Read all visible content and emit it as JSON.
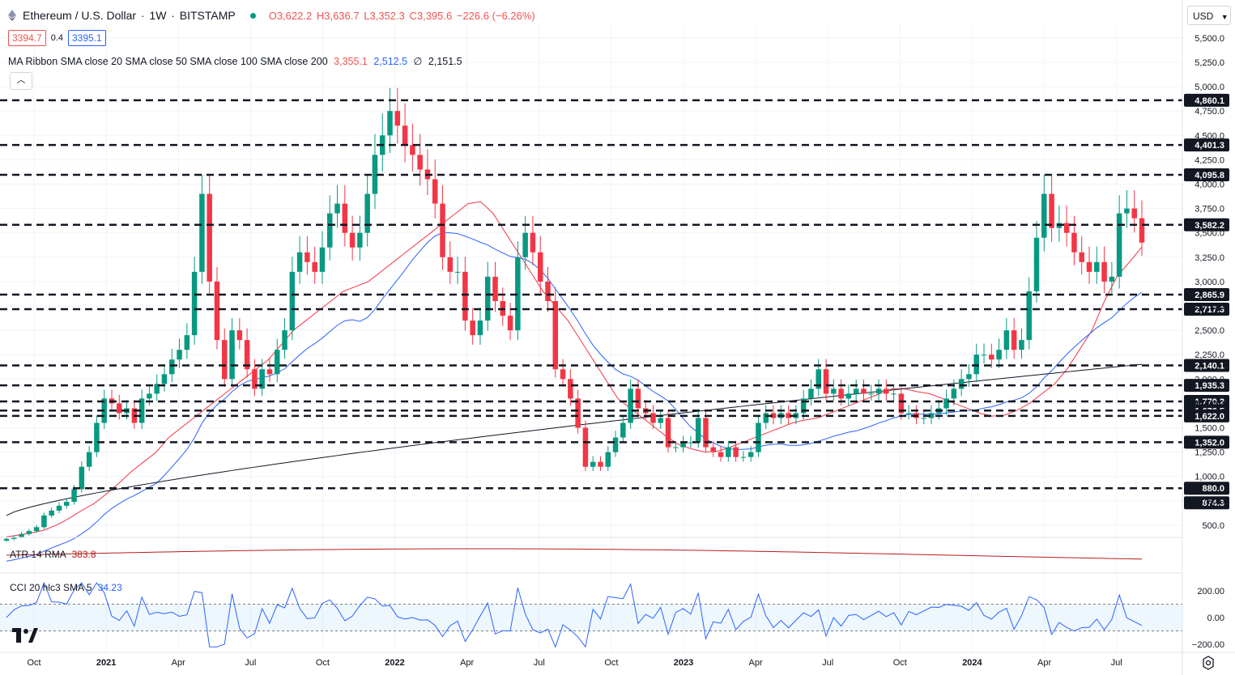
{
  "header": {
    "symbol_name": "Ethereum / U.S. Dollar",
    "interval": "1W",
    "exchange": "BITSTAMP",
    "open": "O3,622.2",
    "high": "H3,636.7",
    "low": "L3,352.3",
    "close": "C3,395.6",
    "change": "−226.6 (−6.26%)",
    "bid": "3394.7",
    "spread": "0.4",
    "ask": "3395.1",
    "indicator_title": "MA Ribbon SMA close 20 SMA close 50 SMA close 100 SMA close 200",
    "ma20_value": "3,355.1",
    "ma50_value": "2,512.5",
    "ma100_value": "∅",
    "ma200_value": "2,151.5",
    "currency_button": "USD"
  },
  "atr": {
    "label": "ATR 14 RMA",
    "value": "383.8"
  },
  "cci": {
    "label": "CCI 20 hlc3 SMA 5",
    "value": "34.23",
    "ticks": [
      "200.00",
      "0.00",
      "−200.00"
    ]
  },
  "colors": {
    "bull": "#089981",
    "bear": "#f23645",
    "ma20": "#f23645",
    "ma50": "#2962ff",
    "ma200": "#131722",
    "atr": "#b71c1c",
    "cci": "#2962ff",
    "level_line": "#131722"
  },
  "chart_data": {
    "type": "candlestick",
    "title": "Ethereum / U.S. Dollar · 1W · BITSTAMP",
    "x_labels": [
      "Oct",
      "2021",
      "Apr",
      "Jul",
      "Oct",
      "2022",
      "Apr",
      "Jul",
      "Oct",
      "2023",
      "Apr",
      "Jul",
      "Oct",
      "2024",
      "Apr",
      "Jul"
    ],
    "y_ticks": [
      "5,500.0",
      "5,250.0",
      "5,000.0",
      "4,750.0",
      "4,500.0",
      "4,250.0",
      "4,000.0",
      "3,750.0",
      "3,500.0",
      "3,250.0",
      "3,000.0",
      "2,750.0",
      "2,500.0",
      "2,250.0",
      "2,000.0",
      "1,750.0",
      "1,500.0",
      "1,250.0",
      "1,000.0",
      "750.0",
      "500.0"
    ],
    "y_tick_values": [
      5500,
      5250,
      5000,
      4750,
      4500,
      4250,
      4000,
      3750,
      3500,
      3250,
      3000,
      2750,
      2500,
      2250,
      2000,
      1750,
      1500,
      1250,
      1000,
      750,
      500
    ],
    "ylim": [
      375,
      5640
    ],
    "horizontal_levels": [
      {
        "label": "4,860.1",
        "value": 4860.1
      },
      {
        "label": "4,401.3",
        "value": 4401.3
      },
      {
        "label": "4,095.8",
        "value": 4095.8
      },
      {
        "label": "3,582.2",
        "value": 3582.2
      },
      {
        "label": "2,865.9",
        "value": 2865.9
      },
      {
        "label": "2,717.3",
        "value": 2717.3
      },
      {
        "label": "2,140.1",
        "value": 2140.1
      },
      {
        "label": "1,935.3",
        "value": 1935.3
      },
      {
        "label": "1,770.2",
        "value": 1770.2
      },
      {
        "label": "1,676.5",
        "value": 1676.5
      },
      {
        "label": "1,622.0",
        "value": 1622.0
      },
      {
        "label": "1,352.0",
        "value": 1352.0
      },
      {
        "label": "880.0",
        "value": 880.0
      },
      {
        "label": "874.3",
        "value": 874.3
      }
    ],
    "close_series": [
      360,
      380,
      410,
      440,
      480,
      600,
      650,
      700,
      740,
      870,
      1100,
      1250,
      1550,
      1800,
      1750,
      1650,
      1700,
      1550,
      1800,
      1850,
      1950,
      2050,
      2200,
      2300,
      2450,
      3100,
      3900,
      3000,
      2400,
      2000,
      2500,
      2400,
      2100,
      1900,
      2100,
      2050,
      2300,
      2500,
      3100,
      3300,
      3200,
      3100,
      3350,
      3700,
      3800,
      3500,
      3350,
      3500,
      3900,
      4300,
      4500,
      4750,
      4600,
      4400,
      4300,
      4150,
      4050,
      3800,
      3250,
      3100,
      3100,
      2600,
      2450,
      2600,
      3050,
      2800,
      2650,
      2500,
      3250,
      3500,
      3300,
      3000,
      2800,
      2100,
      2000,
      1800,
      1500,
      1100,
      1150,
      1100,
      1250,
      1400,
      1550,
      1900,
      1700,
      1650,
      1550,
      1600,
      1300,
      1300,
      1350,
      1350,
      1600,
      1300,
      1250,
      1200,
      1300,
      1200,
      1200,
      1250,
      1550,
      1650,
      1600,
      1650,
      1600,
      1650,
      1800,
      1900,
      2100,
      1850,
      1900,
      1800,
      1850,
      1900,
      1850,
      1850,
      1900,
      1850,
      1850,
      1650,
      1650,
      1600,
      1600,
      1650,
      1700,
      1800,
      1900,
      2000,
      2050,
      2250,
      2250,
      2200,
      2300,
      2500,
      2300,
      2400,
      2900,
      3450,
      3900,
      3550,
      3600,
      3500,
      3300,
      3200,
      3100,
      3200,
      3000,
      3050,
      3700,
      3750,
      3650,
      3400
    ],
    "ma20_series": [
      380,
      400,
      420,
      450,
      500,
      570,
      650,
      720,
      820,
      930,
      1050,
      1150,
      1250,
      1400,
      1500,
      1600,
      1700,
      1800,
      1900,
      2000,
      2100,
      2200,
      2350,
      2500,
      2600,
      2700,
      2800,
      2900,
      2950,
      3000,
      3100,
      3200,
      3300,
      3400,
      3500,
      3600,
      3700,
      3800,
      3820,
      3700,
      3500,
      3300,
      3100,
      2900,
      2750,
      2600,
      2400,
      2200,
      2000,
      1800,
      1700,
      1600,
      1500,
      1400,
      1320,
      1280,
      1250,
      1260,
      1300,
      1350,
      1400,
      1450,
      1500,
      1550,
      1580,
      1600,
      1650,
      1700,
      1750,
      1800,
      1850,
      1900,
      1900,
      1870,
      1850,
      1800,
      1750,
      1700,
      1650,
      1620,
      1630,
      1680,
      1750,
      1850,
      1950,
      2100,
      2300,
      2500,
      2800,
      3050,
      3200,
      3355
    ]
  }
}
